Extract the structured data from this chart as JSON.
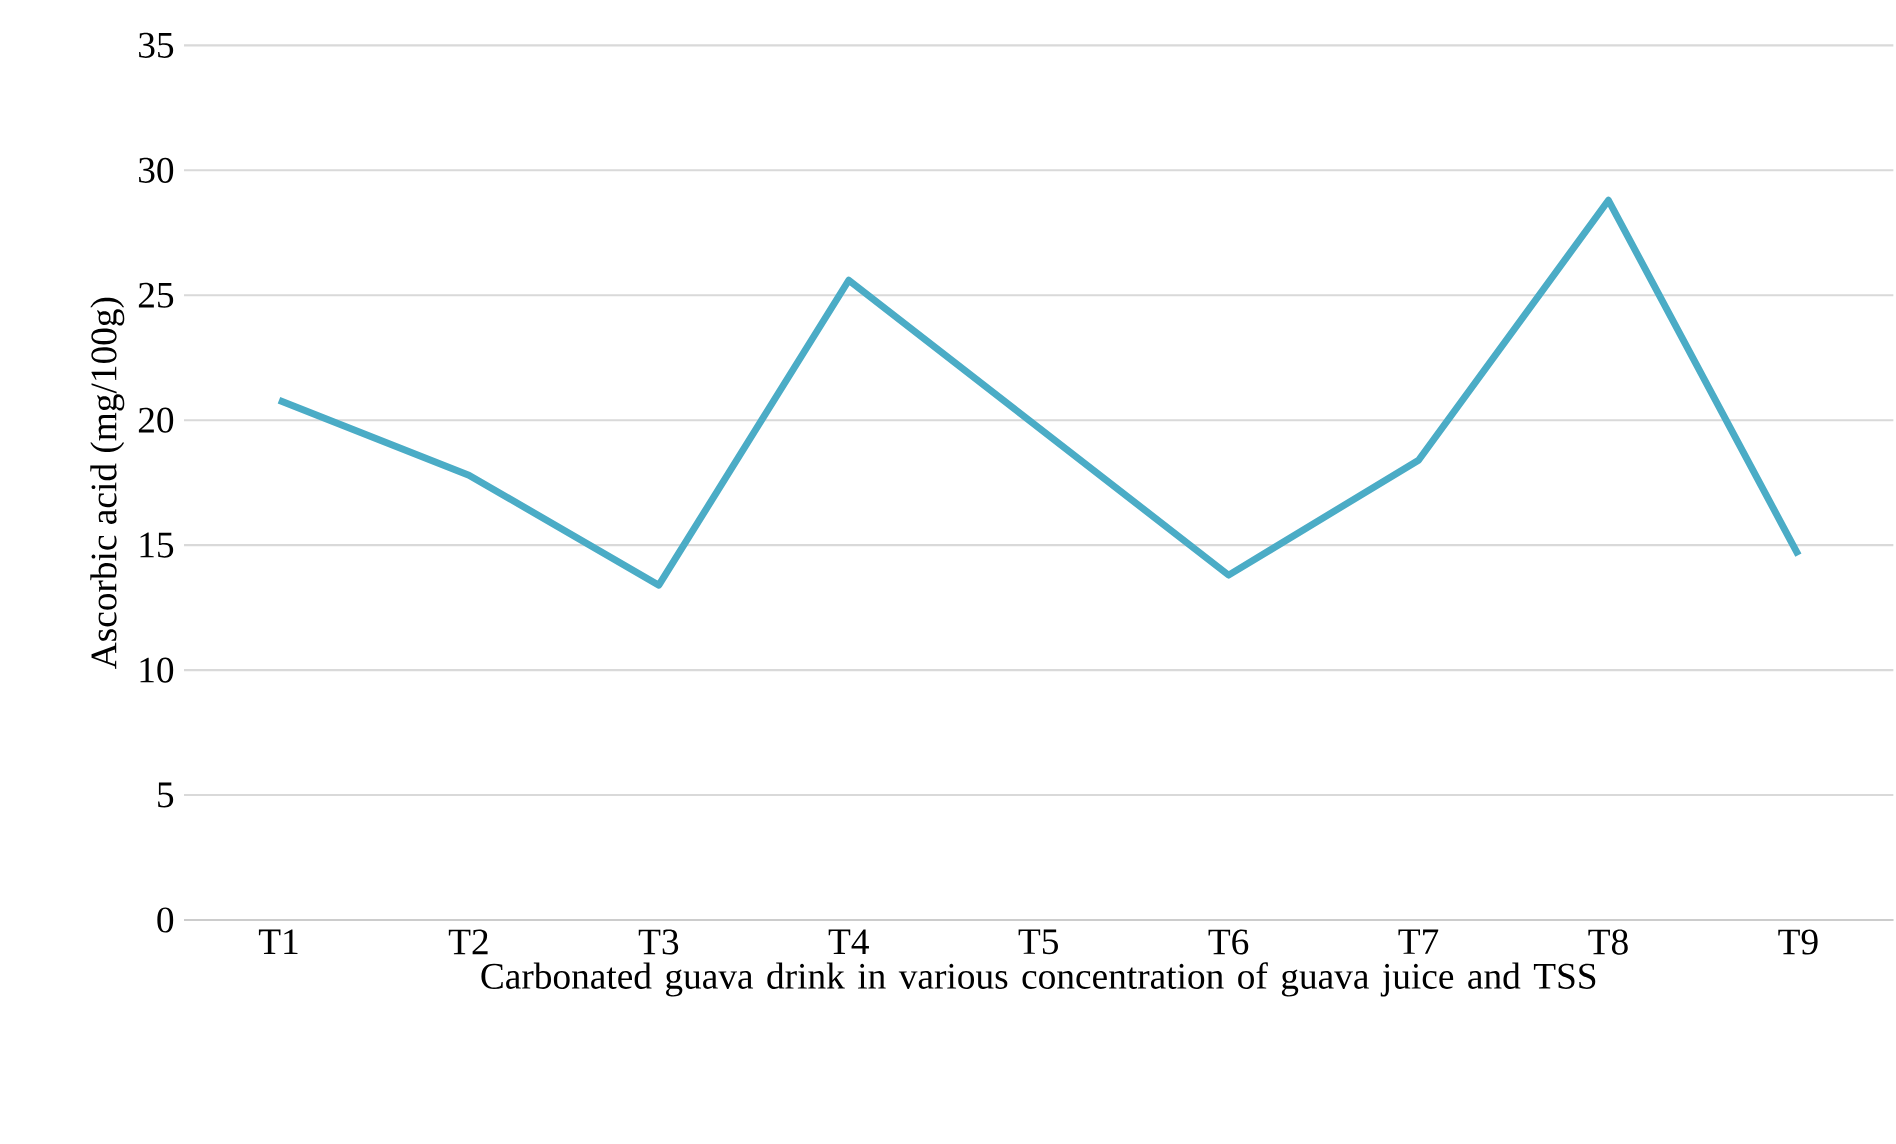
{
  "chart_data": {
    "type": "line",
    "xlabel": "Carbonated guava drink in various concentration of guava juice and TSS",
    "ylabel": "Ascorbic acid (mg/100g)",
    "categories": [
      "T1",
      "T2",
      "T3",
      "T4",
      "T5",
      "T6",
      "T7",
      "T8",
      "T9"
    ],
    "values": [
      20.8,
      17.8,
      13.4,
      25.6,
      19.7,
      13.8,
      18.4,
      28.8,
      14.6
    ],
    "color": "#4bacc6",
    "ylim": [
      0,
      35
    ],
    "yticks": [
      0,
      5,
      10,
      15,
      20,
      25,
      30,
      35
    ],
    "grid": "y",
    "marker": "none",
    "line_style": "solid"
  }
}
